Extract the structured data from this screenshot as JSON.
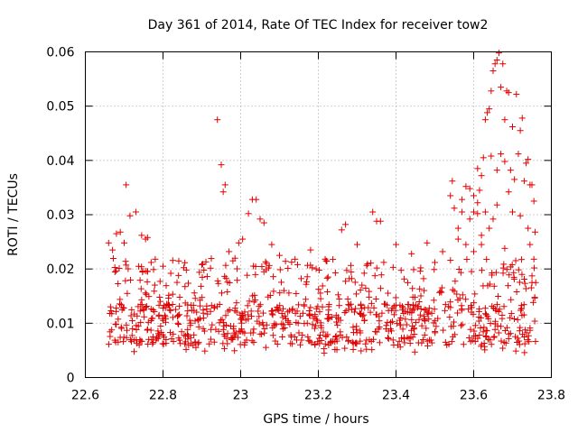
{
  "chart_data": {
    "type": "scatter",
    "title": "Day 361 of 2014, Rate Of TEC Index for receiver tow2",
    "xlabel": "GPS time / hours",
    "ylabel": "ROTI / TECUs",
    "xlim": [
      22.6,
      23.8
    ],
    "ylim": [
      0,
      0.06
    ],
    "grid": true,
    "marker": "+",
    "color": "#e00000",
    "x_ticks": [
      "22.6",
      "22.8",
      "23",
      "23.2",
      "23.4",
      "23.6",
      "23.8"
    ],
    "y_ticks": [
      "0",
      "0.01",
      "0.02",
      "0.03",
      "0.04",
      "0.05",
      "0.06"
    ],
    "series": [
      {
        "name": "ROTI",
        "points": [
          [
            22.66,
            0.0248
          ],
          [
            22.67,
            0.0235
          ],
          [
            22.68,
            0.0265
          ],
          [
            22.69,
            0.0268
          ],
          [
            22.7,
            0.0248
          ],
          [
            22.705,
            0.0355
          ],
          [
            22.715,
            0.0298
          ],
          [
            22.73,
            0.0305
          ],
          [
            22.745,
            0.0262
          ],
          [
            22.755,
            0.0255
          ],
          [
            22.76,
            0.0258
          ],
          [
            22.78,
            0.0218
          ],
          [
            22.8,
            0.0205
          ],
          [
            22.82,
            0.0192
          ],
          [
            22.84,
            0.0188
          ],
          [
            22.86,
            0.0198
          ],
          [
            22.9,
            0.0208
          ],
          [
            22.94,
            0.0475
          ],
          [
            22.95,
            0.0392
          ],
          [
            22.955,
            0.0342
          ],
          [
            22.96,
            0.0355
          ],
          [
            22.97,
            0.0232
          ],
          [
            22.98,
            0.0215
          ],
          [
            22.995,
            0.0248
          ],
          [
            23.005,
            0.0255
          ],
          [
            23.02,
            0.0302
          ],
          [
            23.03,
            0.0328
          ],
          [
            23.04,
            0.0328
          ],
          [
            23.05,
            0.0292
          ],
          [
            23.06,
            0.0285
          ],
          [
            23.08,
            0.0245
          ],
          [
            23.1,
            0.0225
          ],
          [
            23.14,
            0.0218
          ],
          [
            23.18,
            0.0235
          ],
          [
            23.22,
            0.0215
          ],
          [
            23.26,
            0.0272
          ],
          [
            23.27,
            0.0282
          ],
          [
            23.3,
            0.0245
          ],
          [
            23.34,
            0.0305
          ],
          [
            23.35,
            0.0288
          ],
          [
            23.36,
            0.0288
          ],
          [
            23.4,
            0.0245
          ],
          [
            23.44,
            0.0228
          ],
          [
            23.48,
            0.0248
          ],
          [
            23.5,
            0.0212
          ],
          [
            23.52,
            0.0232
          ],
          [
            23.54,
            0.0335
          ],
          [
            23.545,
            0.0362
          ],
          [
            23.55,
            0.0312
          ],
          [
            23.56,
            0.0275
          ],
          [
            23.57,
            0.0305
          ],
          [
            23.58,
            0.0352
          ],
          [
            23.59,
            0.0348
          ],
          [
            23.6,
            0.0335
          ],
          [
            23.61,
            0.0385
          ],
          [
            23.615,
            0.0345
          ],
          [
            23.62,
            0.0372
          ],
          [
            23.625,
            0.0405
          ],
          [
            23.63,
            0.0475
          ],
          [
            23.635,
            0.0488
          ],
          [
            23.64,
            0.0495
          ],
          [
            23.645,
            0.0528
          ],
          [
            23.65,
            0.0565
          ],
          [
            23.655,
            0.0578
          ],
          [
            23.66,
            0.0585
          ],
          [
            23.665,
            0.0598
          ],
          [
            23.67,
            0.0535
          ],
          [
            23.675,
            0.0578
          ],
          [
            23.68,
            0.0475
          ],
          [
            23.685,
            0.0528
          ],
          [
            23.69,
            0.0525
          ],
          [
            23.695,
            0.0382
          ],
          [
            23.7,
            0.0462
          ],
          [
            23.705,
            0.0365
          ],
          [
            23.71,
            0.0522
          ],
          [
            23.715,
            0.0412
          ],
          [
            23.72,
            0.0455
          ],
          [
            23.725,
            0.0478
          ],
          [
            23.73,
            0.0362
          ],
          [
            23.735,
            0.0395
          ],
          [
            23.74,
            0.0402
          ],
          [
            23.745,
            0.0355
          ],
          [
            23.75,
            0.0355
          ],
          [
            23.755,
            0.0325
          ],
          [
            23.758,
            0.0268
          ],
          [
            23.645,
            0.0408
          ],
          [
            23.66,
            0.0382
          ],
          [
            23.67,
            0.0412
          ],
          [
            23.68,
            0.0398
          ],
          [
            23.69,
            0.0342
          ],
          [
            23.6,
            0.0305
          ],
          [
            23.61,
            0.0322
          ],
          [
            23.62,
            0.0262
          ],
          [
            23.63,
            0.0305
          ],
          [
            23.64,
            0.0275
          ],
          [
            23.65,
            0.0292
          ],
          [
            23.66,
            0.0318
          ],
          [
            23.7,
            0.0305
          ],
          [
            23.72,
            0.0298
          ],
          [
            23.74,
            0.0275
          ],
          [
            23.56,
            0.0255
          ],
          [
            23.58,
            0.0245
          ],
          [
            23.6,
            0.0232
          ],
          [
            23.62,
            0.0245
          ],
          [
            23.68,
            0.0238
          ],
          [
            23.745,
            0.0245
          ],
          [
            23.755,
            0.0218
          ],
          [
            23.57,
            0.0328
          ],
          [
            23.59,
            0.0292
          ],
          [
            23.61,
            0.0302
          ]
        ]
      }
    ],
    "band_note": "dense band of ~900 points mostly between 0.005 and 0.02 across the full time range",
    "band": {
      "x_start": 22.66,
      "x_end": 23.76,
      "count": 900,
      "core_range": [
        0.006,
        0.0135
      ],
      "upper_range": [
        0.012,
        0.022
      ],
      "low_min": 0.0045
    }
  }
}
